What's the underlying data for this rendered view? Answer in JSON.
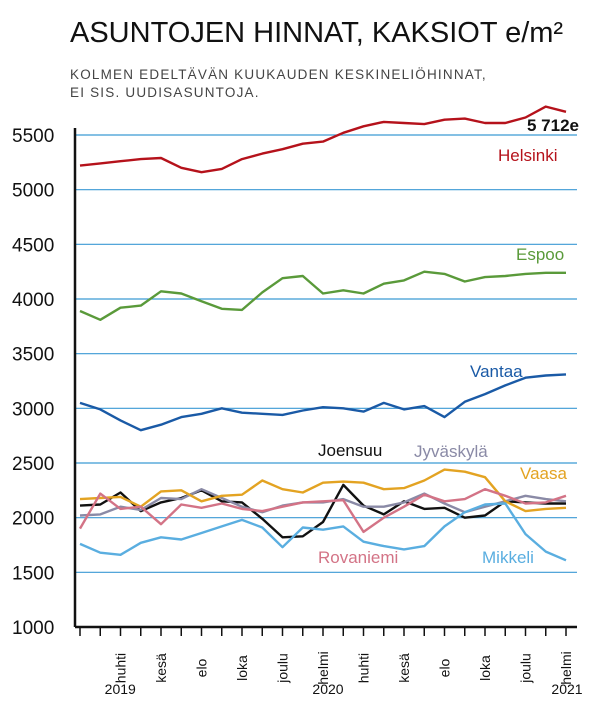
{
  "chart_data": {
    "type": "line",
    "title": "ASUNTOJEN HINNAT, KAKSIOT e/m²",
    "subtitle_lines": [
      "KOLMEN EDELTÄVÄN KUUKAUDEN KESKINELIÖHINNAT,",
      "EI SIS. UUDISASUNTOJA."
    ],
    "ylim": [
      1000,
      5700
    ],
    "yticks": [
      1000,
      1500,
      2000,
      2500,
      3000,
      3500,
      4000,
      4500,
      5000,
      5500
    ],
    "grid": true,
    "x": [
      "2019-02",
      "2019-03",
      "2019-04",
      "2019-05",
      "2019-06",
      "2019-07",
      "2019-08",
      "2019-09",
      "2019-10",
      "2019-11",
      "2019-12",
      "2020-01",
      "2020-02",
      "2020-03",
      "2020-04",
      "2020-05",
      "2020-06",
      "2020-07",
      "2020-08",
      "2020-09",
      "2020-10",
      "2020-11",
      "2020-12",
      "2021-01",
      "2021-02"
    ],
    "month_ticks": [
      {
        "label": "huhti",
        "x": "2019-04"
      },
      {
        "label": "kesä",
        "x": "2019-06"
      },
      {
        "label": "elo",
        "x": "2019-08"
      },
      {
        "label": "loka",
        "x": "2019-10"
      },
      {
        "label": "joulu",
        "x": "2019-12"
      },
      {
        "label": "helmi",
        "x": "2020-02"
      },
      {
        "label": "huhti",
        "x": "2020-04"
      },
      {
        "label": "kesä",
        "x": "2020-06"
      },
      {
        "label": "elo",
        "x": "2020-08"
      },
      {
        "label": "loka",
        "x": "2020-10"
      },
      {
        "label": "joulu",
        "x": "2020-12"
      },
      {
        "label": "helmi",
        "x": "2021-02"
      }
    ],
    "year_labels": [
      {
        "label": "2019",
        "x": "2019-03"
      },
      {
        "label": "2020",
        "x": "2020-02"
      },
      {
        "label": "2021",
        "x": "2021-02"
      }
    ],
    "annotation": {
      "text": "5 712e",
      "series": "Helsinki"
    },
    "series": [
      {
        "name": "Helsinki",
        "color": "#b5121b",
        "values": [
          5220,
          5240,
          5260,
          5280,
          5290,
          5200,
          5160,
          5190,
          5280,
          5330,
          5370,
          5420,
          5440,
          5520,
          5580,
          5620,
          5610,
          5600,
          5640,
          5650,
          5610,
          5610,
          5660,
          5760,
          5712
        ]
      },
      {
        "name": "Espoo",
        "color": "#5a9a3a",
        "values": [
          3890,
          3810,
          3920,
          3940,
          4070,
          4050,
          3980,
          3910,
          3900,
          4060,
          4190,
          4210,
          4050,
          4080,
          4050,
          4140,
          4170,
          4250,
          4230,
          4160,
          4200,
          4210,
          4230,
          4240,
          4240
        ]
      },
      {
        "name": "Vantaa",
        "color": "#1a5aa6",
        "values": [
          3050,
          2990,
          2890,
          2800,
          2850,
          2920,
          2950,
          3000,
          2960,
          2950,
          2940,
          2980,
          3010,
          3000,
          2970,
          3050,
          2990,
          3020,
          2920,
          3060,
          3130,
          3210,
          3280,
          3300,
          3310
        ]
      },
      {
        "name": "Joensuu",
        "color": "#111111",
        "values": [
          2110,
          2120,
          2230,
          2060,
          2140,
          2180,
          2250,
          2150,
          2140,
          1990,
          1820,
          1830,
          1960,
          2300,
          2110,
          2030,
          2150,
          2080,
          2090,
          2000,
          2020,
          2150,
          2140,
          2130,
          2130
        ]
      },
      {
        "name": "Jyväskylä",
        "color": "#8a8aa6",
        "values": [
          2020,
          2030,
          2100,
          2070,
          2180,
          2170,
          2260,
          2180,
          2100,
          2050,
          2110,
          2140,
          2140,
          2170,
          2100,
          2100,
          2140,
          2220,
          2130,
          2050,
          2100,
          2150,
          2200,
          2170,
          2150
        ]
      },
      {
        "name": "Vaasa",
        "color": "#e3a322",
        "values": [
          2170,
          2180,
          2190,
          2100,
          2240,
          2250,
          2150,
          2200,
          2210,
          2340,
          2260,
          2230,
          2320,
          2330,
          2320,
          2260,
          2270,
          2340,
          2440,
          2420,
          2370,
          2150,
          2060,
          2080,
          2090
        ]
      },
      {
        "name": "Rovaniemi",
        "color": "#d37386",
        "values": [
          1900,
          2220,
          2080,
          2100,
          1940,
          2120,
          2090,
          2130,
          2080,
          2060,
          2100,
          2140,
          2150,
          2160,
          1870,
          2000,
          2100,
          2210,
          2150,
          2170,
          2260,
          2200,
          2130,
          2140,
          2200
        ]
      },
      {
        "name": "Mikkeli",
        "color": "#5aaee0",
        "values": [
          1760,
          1680,
          1660,
          1770,
          1820,
          1800,
          1860,
          1920,
          1980,
          1910,
          1730,
          1910,
          1890,
          1920,
          1780,
          1740,
          1710,
          1740,
          1920,
          2050,
          2120,
          2130,
          1850,
          1690,
          1610
        ]
      }
    ]
  }
}
